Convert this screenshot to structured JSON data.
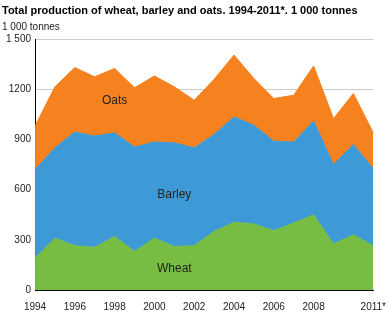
{
  "chart_data": {
    "type": "area",
    "title": "Total production of wheat, barley and oats. 1994-2011*. 1 000 tonnes",
    "y_label": "1 000 tonnes",
    "categories": [
      "1994",
      null,
      "1996",
      null,
      "1998",
      null,
      "2000",
      null,
      "2002",
      null,
      "2004",
      null,
      "2006",
      null,
      "2008",
      null,
      null,
      "2011*"
    ],
    "series": [
      {
        "name": "Wheat",
        "color": "#77bd43",
        "values": [
          190,
          310,
          265,
          255,
          320,
          230,
          310,
          260,
          265,
          350,
          405,
          395,
          355,
          400,
          450,
          275,
          330,
          265
        ]
      },
      {
        "name": "Barley",
        "color": "#3d9ad6",
        "values": [
          530,
          540,
          680,
          665,
          620,
          625,
          575,
          620,
          585,
          580,
          630,
          590,
          535,
          485,
          560,
          475,
          540,
          460
        ]
      },
      {
        "name": "Oats",
        "color": "#f5821f",
        "values": [
          260,
          365,
          385,
          355,
          385,
          355,
          395,
          335,
          285,
          330,
          370,
          280,
          255,
          280,
          330,
          275,
          305,
          215
        ]
      }
    ],
    "stacked": true,
    "ylim": [
      0,
      1500
    ],
    "yticks": [
      0,
      300,
      600,
      900,
      1200,
      {
        "value": 1500,
        "label": "1 500"
      }
    ],
    "grid": true
  }
}
